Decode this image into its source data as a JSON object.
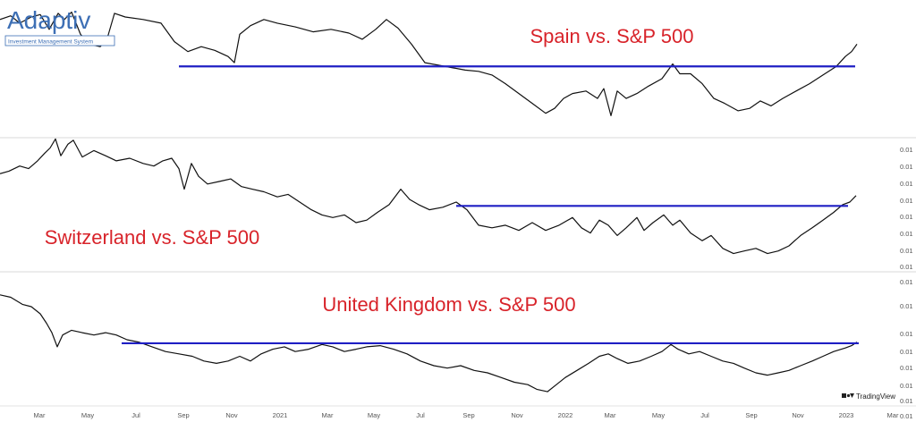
{
  "logo": {
    "name": "Adaptiv",
    "tagline": "Investment Management System"
  },
  "watermark": {
    "text": "TradingView",
    "icon": "tradingview-logo-icon"
  },
  "colors": {
    "line": "#111111",
    "resistance": "#1f1fc4",
    "title": "#d8232a",
    "divider": "#d9d9d9"
  },
  "x_axis": {
    "labels": [
      "Mar",
      "May",
      "Jul",
      "Sep",
      "Nov",
      "2021",
      "Mar",
      "May",
      "Jul",
      "Sep",
      "Nov",
      "2022",
      "Mar",
      "May",
      "Jul",
      "Sep",
      "Nov",
      "2023",
      "Mar"
    ]
  },
  "chart_data": [
    {
      "type": "line",
      "title": "Spain vs. S&P 500",
      "grid": false,
      "y_tick_labels": [],
      "series": [
        {
          "points": [
            [
              0,
              0.1
            ],
            [
              12,
              0.07
            ],
            [
              22,
              0.13
            ],
            [
              35,
              0.08
            ],
            [
              45,
              0.06
            ],
            [
              55,
              0.18
            ],
            [
              65,
              0.05
            ],
            [
              72,
              0.1
            ],
            [
              80,
              0.04
            ],
            [
              90,
              0.22
            ],
            [
              100,
              0.3
            ],
            [
              112,
              0.32
            ],
            [
              120,
              0.25
            ],
            [
              128,
              0.05
            ],
            [
              140,
              0.08
            ],
            [
              160,
              0.1
            ],
            [
              180,
              0.13
            ],
            [
              195,
              0.28
            ],
            [
              210,
              0.36
            ],
            [
              225,
              0.32
            ],
            [
              240,
              0.35
            ],
            [
              255,
              0.4
            ],
            [
              262,
              0.45
            ],
            [
              268,
              0.22
            ],
            [
              280,
              0.15
            ],
            [
              295,
              0.1
            ],
            [
              310,
              0.13
            ],
            [
              330,
              0.16
            ],
            [
              350,
              0.2
            ],
            [
              370,
              0.18
            ],
            [
              390,
              0.21
            ],
            [
              405,
              0.26
            ],
            [
              420,
              0.18
            ],
            [
              432,
              0.1
            ],
            [
              445,
              0.17
            ],
            [
              460,
              0.3
            ],
            [
              475,
              0.45
            ],
            [
              490,
              0.47
            ],
            [
              505,
              0.49
            ],
            [
              520,
              0.51
            ],
            [
              535,
              0.52
            ],
            [
              550,
              0.55
            ],
            [
              565,
              0.62
            ],
            [
              580,
              0.7
            ],
            [
              595,
              0.78
            ],
            [
              610,
              0.86
            ],
            [
              620,
              0.82
            ],
            [
              630,
              0.74
            ],
            [
              640,
              0.7
            ],
            [
              655,
              0.68
            ],
            [
              668,
              0.74
            ],
            [
              675,
              0.66
            ],
            [
              683,
              0.88
            ],
            [
              690,
              0.68
            ],
            [
              700,
              0.74
            ],
            [
              712,
              0.7
            ],
            [
              725,
              0.64
            ],
            [
              740,
              0.58
            ],
            [
              752,
              0.46
            ],
            [
              760,
              0.54
            ],
            [
              772,
              0.54
            ],
            [
              785,
              0.62
            ],
            [
              798,
              0.74
            ],
            [
              810,
              0.78
            ],
            [
              825,
              0.84
            ],
            [
              838,
              0.82
            ],
            [
              850,
              0.76
            ],
            [
              862,
              0.8
            ],
            [
              875,
              0.74
            ],
            [
              890,
              0.68
            ],
            [
              905,
              0.62
            ],
            [
              920,
              0.55
            ],
            [
              935,
              0.48
            ],
            [
              945,
              0.4
            ],
            [
              952,
              0.36
            ],
            [
              958,
              0.3
            ]
          ]
        }
      ],
      "resistance": {
        "x": [
          200,
          956
        ],
        "y": 0.48
      }
    },
    {
      "type": "line",
      "title": "Switzerland vs. S&P 500",
      "grid": false,
      "y_tick_labels": [
        "0.01",
        "0.01",
        "0.01",
        "0.01",
        "0.01",
        "0.01",
        "0.01",
        "0.01"
      ],
      "series": [
        {
          "points": [
            [
              0,
              0.28
            ],
            [
              10,
              0.26
            ],
            [
              22,
              0.22
            ],
            [
              32,
              0.24
            ],
            [
              42,
              0.18
            ],
            [
              50,
              0.12
            ],
            [
              56,
              0.08
            ],
            [
              62,
              0.01
            ],
            [
              68,
              0.14
            ],
            [
              76,
              0.05
            ],
            [
              82,
              0.02
            ],
            [
              92,
              0.15
            ],
            [
              105,
              0.1
            ],
            [
              118,
              0.14
            ],
            [
              130,
              0.18
            ],
            [
              145,
              0.16
            ],
            [
              160,
              0.2
            ],
            [
              172,
              0.22
            ],
            [
              182,
              0.18
            ],
            [
              192,
              0.16
            ],
            [
              200,
              0.24
            ],
            [
              206,
              0.4
            ],
            [
              214,
              0.2
            ],
            [
              222,
              0.3
            ],
            [
              232,
              0.36
            ],
            [
              245,
              0.34
            ],
            [
              258,
              0.32
            ],
            [
              270,
              0.38
            ],
            [
              282,
              0.4
            ],
            [
              295,
              0.42
            ],
            [
              310,
              0.46
            ],
            [
              322,
              0.44
            ],
            [
              335,
              0.5
            ],
            [
              348,
              0.56
            ],
            [
              360,
              0.6
            ],
            [
              372,
              0.62
            ],
            [
              385,
              0.6
            ],
            [
              398,
              0.66
            ],
            [
              410,
              0.64
            ],
            [
              422,
              0.58
            ],
            [
              435,
              0.52
            ],
            [
              448,
              0.4
            ],
            [
              458,
              0.48
            ],
            [
              468,
              0.52
            ],
            [
              480,
              0.56
            ],
            [
              495,
              0.54
            ],
            [
              510,
              0.5
            ],
            [
              522,
              0.56
            ],
            [
              535,
              0.68
            ],
            [
              550,
              0.7
            ],
            [
              565,
              0.68
            ],
            [
              580,
              0.72
            ],
            [
              595,
              0.66
            ],
            [
              610,
              0.72
            ],
            [
              625,
              0.68
            ],
            [
              640,
              0.62
            ],
            [
              650,
              0.7
            ],
            [
              660,
              0.74
            ],
            [
              670,
              0.64
            ],
            [
              680,
              0.68
            ],
            [
              690,
              0.76
            ],
            [
              700,
              0.7
            ],
            [
              712,
              0.62
            ],
            [
              720,
              0.72
            ],
            [
              730,
              0.66
            ],
            [
              742,
              0.6
            ],
            [
              752,
              0.68
            ],
            [
              760,
              0.64
            ],
            [
              772,
              0.74
            ],
            [
              785,
              0.8
            ],
            [
              795,
              0.76
            ],
            [
              808,
              0.86
            ],
            [
              820,
              0.9
            ],
            [
              832,
              0.88
            ],
            [
              845,
              0.86
            ],
            [
              858,
              0.9
            ],
            [
              870,
              0.88
            ],
            [
              882,
              0.84
            ],
            [
              895,
              0.76
            ],
            [
              908,
              0.7
            ],
            [
              920,
              0.64
            ],
            [
              932,
              0.58
            ],
            [
              942,
              0.52
            ],
            [
              950,
              0.5
            ],
            [
              957,
              0.45
            ]
          ]
        }
      ],
      "resistance": {
        "x": [
          510,
          948
        ],
        "y": 0.53
      }
    },
    {
      "type": "line",
      "title": "United Kingdom vs. S&P 500",
      "grid": false,
      "y_tick_labels": [
        "0.01",
        "0.01",
        "0.01",
        "0.01",
        "0.01",
        "0.01",
        "0.01",
        "0.01"
      ],
      "series": [
        {
          "points": [
            [
              0,
              0.12
            ],
            [
              12,
              0.14
            ],
            [
              25,
              0.2
            ],
            [
              35,
              0.22
            ],
            [
              45,
              0.28
            ],
            [
              52,
              0.36
            ],
            [
              58,
              0.44
            ],
            [
              64,
              0.56
            ],
            [
              70,
              0.46
            ],
            [
              80,
              0.42
            ],
            [
              92,
              0.44
            ],
            [
              105,
              0.46
            ],
            [
              118,
              0.44
            ],
            [
              130,
              0.46
            ],
            [
              142,
              0.5
            ],
            [
              155,
              0.52
            ],
            [
              170,
              0.56
            ],
            [
              185,
              0.6
            ],
            [
              200,
              0.62
            ],
            [
              215,
              0.64
            ],
            [
              228,
              0.68
            ],
            [
              242,
              0.7
            ],
            [
              255,
              0.68
            ],
            [
              268,
              0.64
            ],
            [
              280,
              0.68
            ],
            [
              292,
              0.62
            ],
            [
              305,
              0.58
            ],
            [
              318,
              0.56
            ],
            [
              330,
              0.6
            ],
            [
              345,
              0.58
            ],
            [
              360,
              0.54
            ],
            [
              372,
              0.56
            ],
            [
              385,
              0.6
            ],
            [
              398,
              0.58
            ],
            [
              410,
              0.56
            ],
            [
              425,
              0.55
            ],
            [
              440,
              0.58
            ],
            [
              455,
              0.62
            ],
            [
              470,
              0.68
            ],
            [
              485,
              0.72
            ],
            [
              500,
              0.74
            ],
            [
              515,
              0.72
            ],
            [
              530,
              0.76
            ],
            [
              545,
              0.78
            ],
            [
              560,
              0.82
            ],
            [
              575,
              0.86
            ],
            [
              590,
              0.88
            ],
            [
              600,
              0.92
            ],
            [
              612,
              0.94
            ],
            [
              622,
              0.88
            ],
            [
              632,
              0.82
            ],
            [
              645,
              0.76
            ],
            [
              658,
              0.7
            ],
            [
              670,
              0.64
            ],
            [
              680,
              0.62
            ],
            [
              690,
              0.66
            ],
            [
              702,
              0.7
            ],
            [
              715,
              0.68
            ],
            [
              728,
              0.64
            ],
            [
              740,
              0.6
            ],
            [
              750,
              0.54
            ],
            [
              758,
              0.58
            ],
            [
              770,
              0.62
            ],
            [
              782,
              0.6
            ],
            [
              795,
              0.64
            ],
            [
              808,
              0.68
            ],
            [
              820,
              0.7
            ],
            [
              832,
              0.74
            ],
            [
              845,
              0.78
            ],
            [
              858,
              0.8
            ],
            [
              870,
              0.78
            ],
            [
              882,
              0.76
            ],
            [
              895,
              0.72
            ],
            [
              908,
              0.68
            ],
            [
              920,
              0.64
            ],
            [
              932,
              0.6
            ],
            [
              945,
              0.57
            ],
            [
              952,
              0.55
            ],
            [
              958,
              0.52
            ]
          ]
        }
      ],
      "resistance": {
        "x": [
          136,
          960
        ],
        "y": 0.53
      }
    }
  ]
}
